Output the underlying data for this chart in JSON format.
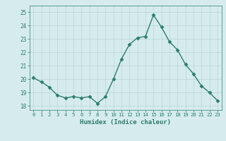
{
  "x": [
    0,
    1,
    2,
    3,
    4,
    5,
    6,
    7,
    8,
    9,
    10,
    11,
    12,
    13,
    14,
    15,
    16,
    17,
    18,
    19,
    20,
    21,
    22,
    23
  ],
  "y": [
    20.1,
    19.8,
    19.4,
    18.8,
    18.6,
    18.7,
    18.6,
    18.7,
    18.2,
    18.7,
    20.0,
    21.5,
    22.6,
    23.1,
    23.2,
    24.8,
    23.9,
    22.8,
    22.2,
    21.1,
    20.4,
    19.5,
    19.0,
    18.4
  ],
  "xlabel": "Humidex (Indice chaleur)",
  "xlim": [
    -0.5,
    23.5
  ],
  "ylim": [
    17.7,
    25.5
  ],
  "yticks": [
    18,
    19,
    20,
    21,
    22,
    23,
    24,
    25
  ],
  "xticks": [
    0,
    1,
    2,
    3,
    4,
    5,
    6,
    7,
    8,
    9,
    10,
    11,
    12,
    13,
    14,
    15,
    16,
    17,
    18,
    19,
    20,
    21,
    22,
    23
  ],
  "line_color": "#2d7d6d",
  "marker": "D",
  "marker_size": 2.5,
  "bg_color": "#d6ecec",
  "grid_color": "#b8d4d4",
  "tick_color": "#2d7d6d",
  "label_color": "#2d7d6d",
  "line_width": 1.0
}
